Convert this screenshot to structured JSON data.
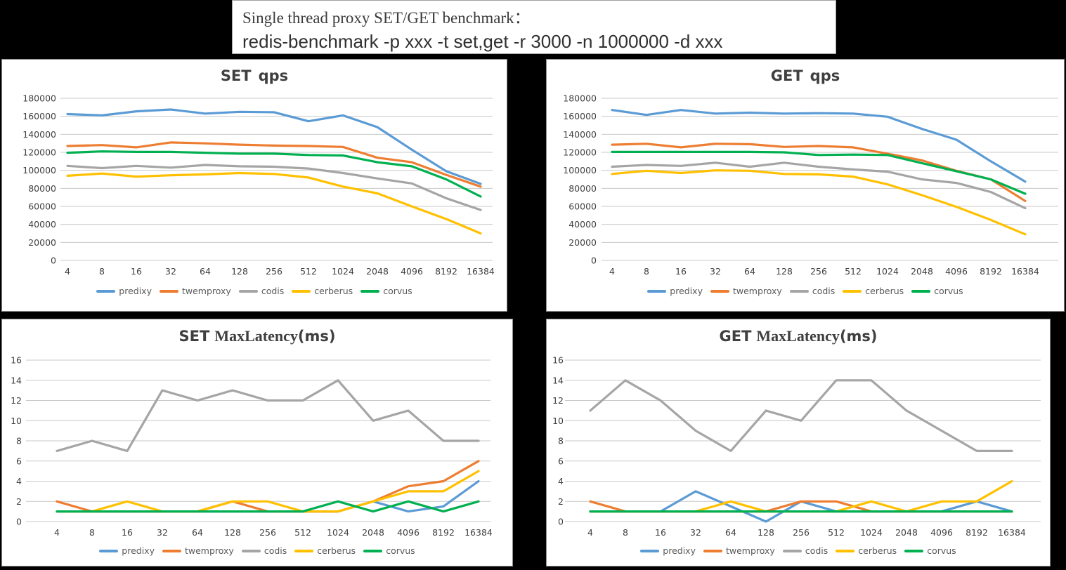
{
  "header": {
    "title_line1": "Single thread proxy SET/GET benchmark：",
    "title_line2": "redis-benchmark -p xxx -t set,get -r 3000 -n 1000000 -d xxx"
  },
  "palette": {
    "predixy": "#5B9BD5",
    "twemproxy": "#ED7D31",
    "codis": "#A5A5A5",
    "cerberus": "#FFC000",
    "corvus": "#00B050"
  },
  "chart_data": [
    {
      "type": "line",
      "title_main": "SET",
      "title_serif": "",
      "title_tail": "qps",
      "ylim": [
        0,
        180000
      ],
      "ytick_step": 20000,
      "grid": true,
      "legend_position": "bottom",
      "categories": [
        "4",
        "8",
        "16",
        "32",
        "64",
        "128",
        "256",
        "512",
        "1024",
        "2048",
        "4096",
        "8192",
        "16384"
      ],
      "series": [
        {
          "name": "predixy",
          "color": "#5B9BD5",
          "values": [
            162500,
            161000,
            165500,
            167500,
            163000,
            165000,
            164500,
            154500,
            161000,
            148000,
            123000,
            99000,
            85000
          ]
        },
        {
          "name": "twemproxy",
          "color": "#ED7D31",
          "values": [
            127000,
            128000,
            125500,
            131000,
            130000,
            128500,
            127500,
            127000,
            126000,
            114000,
            109000,
            95000,
            82000
          ]
        },
        {
          "name": "codis",
          "color": "#A5A5A5",
          "values": [
            105000,
            102500,
            105000,
            103000,
            106000,
            104500,
            104000,
            102000,
            97000,
            91000,
            85500,
            69000,
            56000
          ]
        },
        {
          "name": "cerberus",
          "color": "#FFC000",
          "values": [
            94000,
            96500,
            93000,
            94500,
            95500,
            97000,
            96000,
            92000,
            82000,
            74500,
            60000,
            46000,
            30000
          ]
        },
        {
          "name": "corvus",
          "color": "#00B050",
          "values": [
            119500,
            121000,
            120500,
            120500,
            119500,
            118500,
            118500,
            117000,
            116500,
            109000,
            104500,
            90000,
            71000
          ]
        }
      ]
    },
    {
      "type": "line",
      "title_main": "GET",
      "title_serif": "",
      "title_tail": "qps",
      "ylim": [
        0,
        180000
      ],
      "ytick_step": 20000,
      "grid": true,
      "legend_position": "bottom",
      "categories": [
        "4",
        "8",
        "16",
        "32",
        "64",
        "128",
        "256",
        "512",
        "1024",
        "2048",
        "4096",
        "8192",
        "16384"
      ],
      "series": [
        {
          "name": "predixy",
          "color": "#5B9BD5",
          "values": [
            167000,
            161500,
            167000,
            163000,
            164000,
            163000,
            163500,
            163000,
            159500,
            146000,
            134000,
            110000,
            87500
          ]
        },
        {
          "name": "twemproxy",
          "color": "#ED7D31",
          "values": [
            128500,
            129500,
            125500,
            129500,
            129000,
            126000,
            127000,
            125500,
            118500,
            111000,
            99500,
            90000,
            66000
          ]
        },
        {
          "name": "codis",
          "color": "#A5A5A5",
          "values": [
            104000,
            106000,
            105000,
            108500,
            104000,
            108500,
            104000,
            101000,
            98500,
            90000,
            86000,
            76000,
            58000
          ]
        },
        {
          "name": "cerberus",
          "color": "#FFC000",
          "values": [
            96000,
            99500,
            97000,
            100000,
            99500,
            96000,
            95500,
            93000,
            84500,
            72500,
            59500,
            45000,
            29000
          ]
        },
        {
          "name": "corvus",
          "color": "#00B050",
          "values": [
            120500,
            120500,
            120500,
            120500,
            120500,
            120000,
            117000,
            117500,
            117000,
            108000,
            99000,
            90000,
            74000
          ]
        }
      ]
    },
    {
      "type": "line",
      "title_main": "SET",
      "title_serif": "MaxLatency",
      "title_tail": "(ms)",
      "ylim": [
        0,
        16
      ],
      "ytick_step": 2,
      "grid": true,
      "legend_position": "bottom",
      "categories": [
        "4",
        "8",
        "16",
        "32",
        "64",
        "128",
        "256",
        "512",
        "1024",
        "2048",
        "4096",
        "8192",
        "16384"
      ],
      "series": [
        {
          "name": "predixy",
          "color": "#5B9BD5",
          "values": [
            1,
            1,
            1,
            1,
            1,
            1,
            1,
            1,
            1,
            2,
            1,
            1.5,
            4
          ]
        },
        {
          "name": "twemproxy",
          "color": "#ED7D31",
          "values": [
            2,
            1,
            1,
            1,
            1,
            2,
            1,
            1,
            1,
            2,
            3.5,
            4,
            6
          ]
        },
        {
          "name": "codis",
          "color": "#A5A5A5",
          "values": [
            7,
            8,
            7,
            13,
            12,
            13,
            12,
            12,
            14,
            10,
            11,
            8,
            8
          ]
        },
        {
          "name": "cerberus",
          "color": "#FFC000",
          "values": [
            1,
            1,
            2,
            1,
            1,
            2,
            2,
            1,
            1,
            2,
            3,
            3,
            5
          ]
        },
        {
          "name": "corvus",
          "color": "#00B050",
          "values": [
            1,
            1,
            1,
            1,
            1,
            1,
            1,
            1,
            2,
            1,
            2,
            1,
            2
          ]
        }
      ]
    },
    {
      "type": "line",
      "title_main": "GET",
      "title_serif": "MaxLatency",
      "title_tail": "(ms)",
      "ylim": [
        0,
        16
      ],
      "ytick_step": 2,
      "grid": true,
      "legend_position": "bottom",
      "categories": [
        "4",
        "8",
        "16",
        "32",
        "64",
        "128",
        "256",
        "512",
        "1024",
        "2048",
        "4096",
        "8192",
        "16384"
      ],
      "series": [
        {
          "name": "predixy",
          "color": "#5B9BD5",
          "values": [
            1,
            1,
            1,
            3,
            1.5,
            0,
            2,
            1,
            1,
            1,
            1,
            2,
            1
          ]
        },
        {
          "name": "twemproxy",
          "color": "#ED7D31",
          "values": [
            2,
            1,
            1,
            1,
            1,
            1,
            2,
            2,
            1,
            1,
            1,
            1,
            1
          ]
        },
        {
          "name": "codis",
          "color": "#A5A5A5",
          "values": [
            11,
            14,
            12,
            9,
            7,
            11,
            10,
            14,
            14,
            11,
            9,
            7,
            7
          ]
        },
        {
          "name": "cerberus",
          "color": "#FFC000",
          "values": [
            1,
            1,
            1,
            1,
            2,
            1,
            1,
            1,
            2,
            1,
            2,
            2,
            4
          ]
        },
        {
          "name": "corvus",
          "color": "#00B050",
          "values": [
            1,
            1,
            1,
            1,
            1,
            1,
            1,
            1,
            1,
            1,
            1,
            1,
            1
          ]
        }
      ]
    }
  ]
}
